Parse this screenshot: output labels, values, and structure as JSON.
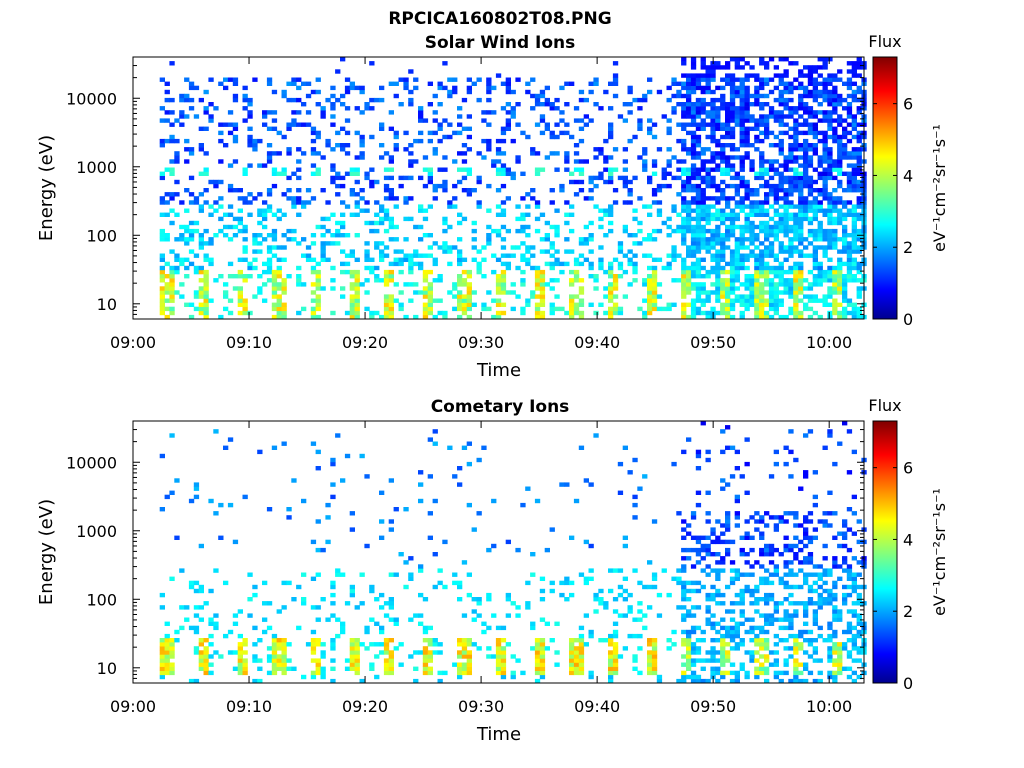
{
  "figure_title": "RPCICA160802T08.PNG",
  "chart_data": [
    {
      "type": "heatmap",
      "title": "Solar Wind Ions",
      "xlabel": "Time",
      "ylabel": "Energy (eV)",
      "x_ticks": [
        "09:00",
        "09:10",
        "09:20",
        "09:30",
        "09:40",
        "09:50",
        "10:00"
      ],
      "xlim": [
        "09:00",
        "10:03"
      ],
      "y_scale": "log",
      "y_ticks": [
        10,
        100,
        1000,
        10000
      ],
      "y_tick_labels": [
        "10",
        "100",
        "1000",
        "10000"
      ],
      "ylim": [
        6,
        40000
      ],
      "colorbar": {
        "title": "Flux",
        "label": "eV⁻¹cm⁻²sr⁻¹s⁻¹",
        "range": [
          0,
          7.3
        ],
        "ticks": [
          0,
          2,
          4,
          6
        ],
        "colormap": "jet"
      },
      "data_start_minute": 2.3,
      "activity": {
        "high_energy_background_level": 1.2,
        "periodic_peaks_energy_eV": [
          12,
          18,
          850
        ],
        "peak_period_minutes": 3.2,
        "dense_region_after": "09:47"
      }
    },
    {
      "type": "heatmap",
      "title": "Cometary Ions",
      "xlabel": "Time",
      "ylabel": "Energy (eV)",
      "x_ticks": [
        "09:00",
        "09:10",
        "09:20",
        "09:30",
        "09:40",
        "09:50",
        "10:00"
      ],
      "xlim": [
        "09:00",
        "10:03"
      ],
      "y_scale": "log",
      "y_ticks": [
        10,
        100,
        1000,
        10000
      ],
      "y_tick_labels": [
        "10",
        "100",
        "1000",
        "10000"
      ],
      "ylim": [
        6,
        40000
      ],
      "colorbar": {
        "title": "Flux",
        "label": "eV⁻¹cm⁻²sr⁻¹s⁻¹",
        "range": [
          0,
          7.3
        ],
        "ticks": [
          0,
          2,
          4,
          6
        ],
        "colormap": "jet"
      },
      "data_start_minute": 2.3,
      "activity": {
        "low_energy_band_eV": [
          9,
          25
        ],
        "low_energy_peak_level": 4.8,
        "peak_period_minutes": 3.2,
        "dense_region_after": "09:47"
      }
    }
  ]
}
